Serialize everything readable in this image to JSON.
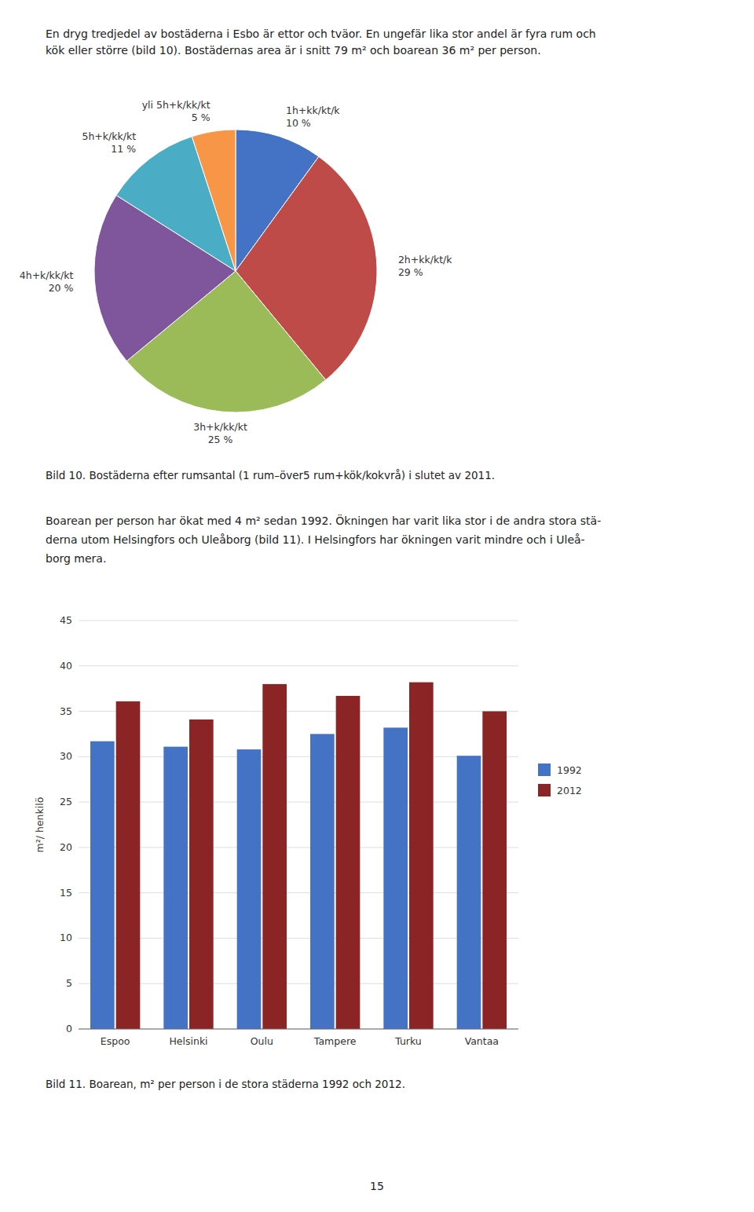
{
  "chart_data": [
    {
      "type": "pie",
      "title": "Bild 10. Bostäderna efter rumsantal (1 rum–över5 rum+kök/kokvrå) i slutet av 2011.",
      "categories": [
        "1h+kk/kt/k",
        "2h+kk/kt/k",
        "3h+k/kk/kt",
        "4h+k/kk/kt",
        "5h+k/kk/kt",
        "yli 5h+k/kk/kt"
      ],
      "values": [
        10,
        29,
        25,
        20,
        11,
        5
      ],
      "value_labels": [
        "10 %",
        "29 %",
        "25 %",
        "20 %",
        "11 %",
        "5 %"
      ],
      "colors": [
        "#4472C4",
        "#BE4B48",
        "#9BBB59",
        "#7F559C",
        "#4BACC6",
        "#F79646"
      ],
      "data_labels": true
    },
    {
      "type": "bar",
      "title": "Bild 11. Boarean, m² per person i de stora städerna 1992 och 2012.",
      "y_label": "m²/ henkilö",
      "categories": [
        "Espoo",
        "Helsinki",
        "Oulu",
        "Tampere",
        "Turku",
        "Vantaa"
      ],
      "series": [
        {
          "name": "1992",
          "color": "#4472C4",
          "values": [
            31.7,
            31.1,
            30.8,
            32.5,
            33.2,
            30.1
          ]
        },
        {
          "name": "2012",
          "color": "#8B2525",
          "values": [
            36.1,
            34.1,
            38.0,
            36.7,
            38.2,
            35.0
          ]
        }
      ],
      "ylim": [
        0,
        45
      ],
      "yticks": [
        0,
        5,
        10,
        15,
        20,
        25,
        30,
        35,
        40,
        45
      ],
      "grid": true,
      "legend": "right"
    }
  ],
  "page_text": {
    "top": [
      "En dryg tredjedel av bostäderna i Esbo är ettor och tväor. En ungefär lika stor andel är fyra rum och",
      "kök eller större (bild 10). Bostädernas area är i snitt 79 m² och boarean 36 m² per person."
    ],
    "middle": [
      "Boarean per person har ökat med 4 m² sedan 1992. Ökningen har varit lika stor i de andra stora stä-",
      "derna utom Helsingfors och Uleåborg (bild 11). I Helsingfors har ökningen varit mindre och i Uleå-",
      "borg mera."
    ],
    "page_number": "15"
  }
}
